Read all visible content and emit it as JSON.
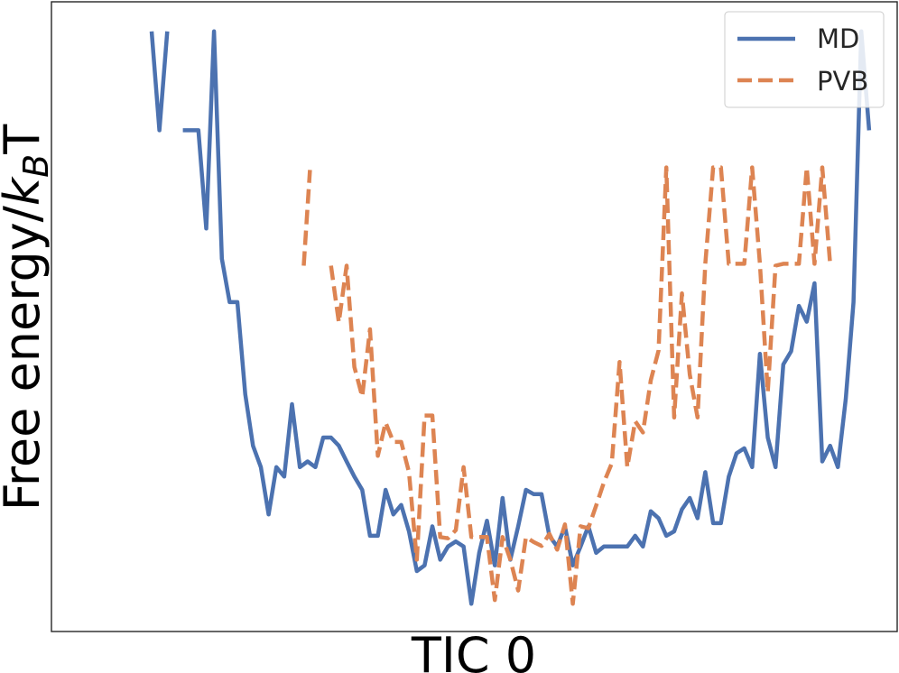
{
  "chart_data": {
    "type": "line",
    "title": "",
    "xlabel": "TIC 0",
    "ylabel": {
      "main": "Free energy/",
      "k": "k",
      "sub": "B",
      "t": "T"
    },
    "xticks_shown": false,
    "yticks_shown": false,
    "grid": false,
    "legend": {
      "placement": "top-right",
      "entries": [
        "MD",
        "PVB"
      ]
    },
    "xlim": [
      0,
      100
    ],
    "ylim": [
      0,
      100
    ],
    "series": [
      {
        "name": "MD",
        "color": "#4c72b0",
        "style": "solid",
        "points": [
          [
            12,
            95.3
          ],
          [
            13,
            79.6
          ],
          [
            14,
            95.3
          ],
          null,
          [
            16,
            79.6
          ],
          [
            17,
            79.6
          ],
          [
            18,
            79.6
          ],
          [
            19,
            64.0
          ],
          [
            20,
            95.3
          ],
          [
            21,
            59.2
          ],
          [
            22,
            52.3
          ],
          [
            23,
            52.3
          ],
          [
            24,
            37.7
          ],
          [
            25,
            29.5
          ],
          [
            26,
            26.1
          ],
          [
            27,
            18.6
          ],
          [
            28,
            26.1
          ],
          [
            29,
            24.6
          ],
          [
            30,
            36.1
          ],
          [
            31,
            26.1
          ],
          [
            32,
            27.0
          ],
          [
            33,
            26.1
          ],
          [
            34,
            30.8
          ],
          [
            35,
            30.8
          ],
          [
            36,
            29.5
          ],
          [
            37,
            27.0
          ],
          [
            38,
            24.6
          ],
          [
            39,
            22.5
          ],
          [
            40,
            15.2
          ],
          [
            41,
            15.2
          ],
          [
            42,
            22.5
          ],
          [
            43,
            18.6
          ],
          [
            44,
            20.1
          ],
          [
            45,
            15.9
          ],
          [
            46,
            9.6
          ],
          [
            47,
            10.5
          ],
          [
            48,
            16.7
          ],
          [
            49,
            11.4
          ],
          [
            50,
            13.5
          ],
          [
            51,
            14.3
          ],
          [
            52,
            13.5
          ],
          [
            53,
            4.4
          ],
          [
            54,
            12.5
          ],
          [
            55,
            17.6
          ],
          [
            56,
            10.5
          ],
          [
            57,
            21.2
          ],
          [
            58,
            11.4
          ],
          [
            59,
            16.7
          ],
          [
            60,
            22.5
          ],
          [
            61,
            21.8
          ],
          [
            62,
            21.8
          ],
          [
            63,
            15.2
          ],
          [
            64,
            13.5
          ],
          [
            65,
            16.7
          ],
          [
            66,
            10.5
          ],
          [
            67,
            13.5
          ],
          [
            68,
            16.7
          ],
          [
            69,
            12.5
          ],
          [
            70,
            13.5
          ],
          [
            71,
            13.5
          ],
          [
            72,
            13.5
          ],
          [
            73,
            13.5
          ],
          [
            74,
            15.2
          ],
          [
            75,
            13.5
          ],
          [
            76,
            19.1
          ],
          [
            77,
            18.0
          ],
          [
            78,
            15.2
          ],
          [
            79,
            15.9
          ],
          [
            80,
            19.4
          ],
          [
            81,
            21.2
          ],
          [
            82,
            18.0
          ],
          [
            83,
            25.3
          ],
          [
            84,
            17.2
          ],
          [
            85,
            17.2
          ],
          [
            86,
            24.6
          ],
          [
            87,
            28.3
          ],
          [
            88,
            29.1
          ],
          [
            89,
            26.1
          ],
          [
            90,
            44.1
          ],
          [
            91,
            30.8
          ],
          [
            92,
            26.1
          ],
          [
            93,
            42.4
          ],
          [
            94,
            44.5
          ],
          [
            95,
            51.7
          ],
          [
            96,
            49.2
          ],
          [
            97,
            55.3
          ],
          [
            98,
            27.0
          ],
          [
            99,
            29.5
          ],
          [
            100,
            26.1
          ],
          [
            101,
            36.9
          ],
          [
            102,
            52.3
          ],
          [
            103,
            95.3
          ],
          [
            104,
            79.6
          ]
        ]
      },
      {
        "name": "PVB",
        "color": "#dd8452",
        "style": "dashed",
        "points": [
          [
            31.5,
            58.1
          ],
          [
            32.3,
            73.3
          ],
          null,
          [
            35,
            58.1
          ],
          [
            36,
            49.1
          ],
          [
            37,
            58.1
          ],
          [
            38,
            42.0
          ],
          [
            39,
            37.3
          ],
          [
            40,
            48.0
          ],
          [
            41,
            27.9
          ],
          [
            42,
            33.2
          ],
          [
            43,
            30.1
          ],
          [
            44,
            30.1
          ],
          [
            45,
            25.3
          ],
          [
            46,
            11.4
          ],
          [
            47,
            34.3
          ],
          [
            48,
            34.3
          ],
          [
            49,
            15.0
          ],
          [
            50,
            14.8
          ],
          [
            51,
            16.1
          ],
          [
            52,
            26.1
          ],
          [
            53,
            15.0
          ],
          [
            54,
            15.0
          ],
          [
            55,
            15.0
          ],
          [
            56,
            5.0
          ],
          [
            57,
            15.0
          ],
          [
            58,
            11.4
          ],
          [
            59,
            6.5
          ],
          [
            60,
            15.0
          ],
          [
            61,
            14.2
          ],
          [
            62,
            13.6
          ],
          [
            63,
            15.5
          ],
          [
            64,
            13.0
          ],
          [
            65,
            17.0
          ],
          [
            66,
            4.4
          ],
          [
            67,
            16.7
          ],
          [
            68,
            16.4
          ],
          [
            69,
            20.0
          ],
          [
            70,
            23.7
          ],
          [
            71,
            26.7
          ],
          [
            72,
            42.8
          ],
          [
            73,
            26.1
          ],
          [
            74,
            33.4
          ],
          [
            75,
            31.6
          ],
          [
            76,
            39.9
          ],
          [
            77,
            44.6
          ],
          [
            78,
            73.7
          ],
          [
            79,
            34.0
          ],
          [
            80,
            53.7
          ],
          [
            81,
            40.8
          ],
          [
            82,
            34.0
          ],
          [
            83,
            58.4
          ],
          [
            84,
            73.7
          ],
          [
            85,
            73.7
          ],
          [
            86,
            58.4
          ],
          [
            87,
            58.4
          ],
          [
            88,
            58.4
          ],
          [
            89,
            73.7
          ],
          [
            90,
            58.4
          ],
          [
            91,
            38.0
          ],
          [
            92,
            58.1
          ],
          [
            93,
            58.4
          ],
          [
            94,
            58.4
          ],
          [
            95,
            58.4
          ],
          [
            96,
            73.7
          ],
          [
            97,
            58.4
          ],
          [
            98,
            73.7
          ],
          [
            99,
            58.4
          ]
        ]
      }
    ]
  }
}
